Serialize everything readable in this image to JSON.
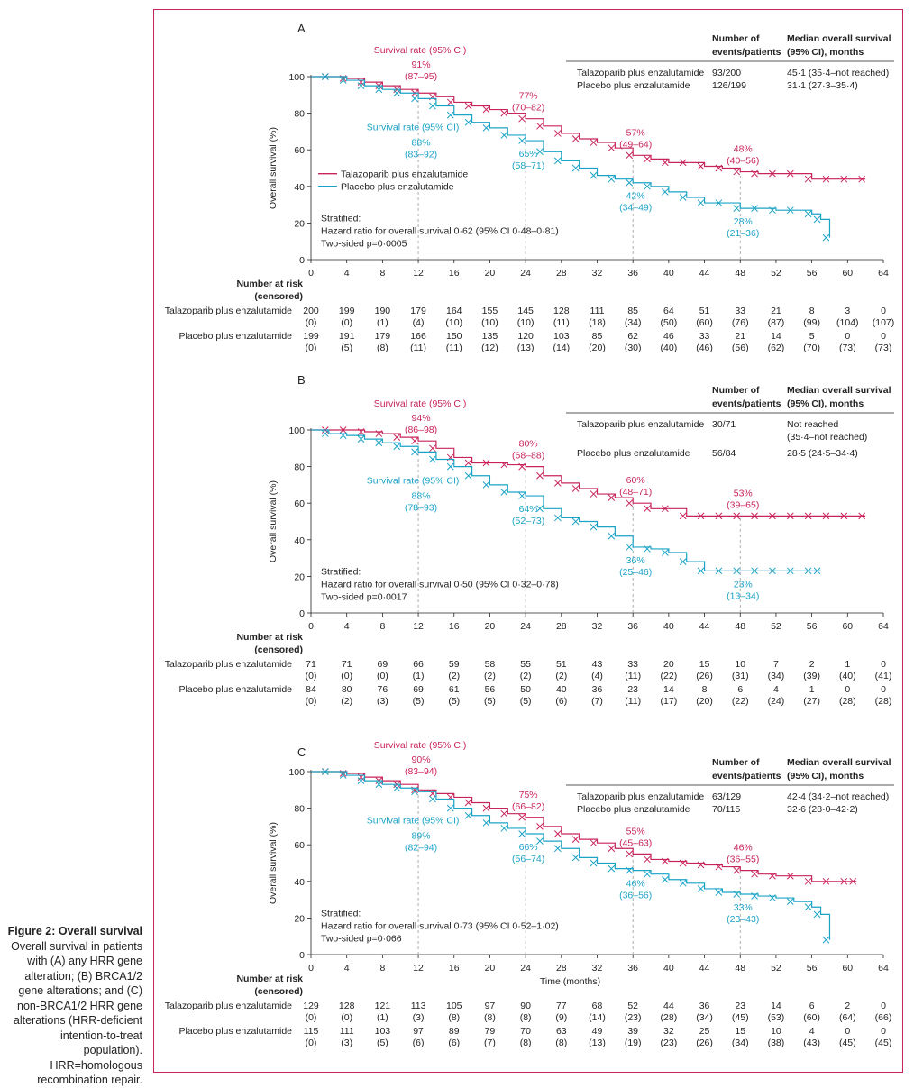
{
  "caption": {
    "title": "Figure 2: Overall survival",
    "text": "Overall survival in patients with (A) any HRR gene alteration; (B) BRCA1/2 gene alterations; and (C) non-BRCA1/2 HRR gene alterations (HRR-deficient intention-to-treat population). HRR=homologous recombination repair."
  },
  "colors": {
    "talazoparib": "#c8245a",
    "placebo": "#1ba3c6",
    "frame": "#c8245a",
    "grid": "#999999"
  },
  "chart_data": [
    {
      "panel": "A",
      "type": "line",
      "ylabel": "Overall survival (%)",
      "xlabel": "",
      "xlim": [
        0,
        64
      ],
      "ylim": [
        0,
        100
      ],
      "xticks": [
        0,
        4,
        8,
        12,
        16,
        20,
        24,
        28,
        32,
        36,
        40,
        44,
        48,
        52,
        56,
        60,
        64
      ],
      "yticks": [
        0,
        20,
        40,
        60,
        80,
        100
      ],
      "legend": {
        "placement": "center-left",
        "entries": [
          "Talazoparib plus enzalutamide",
          "Placebo plus enzalutamide"
        ]
      },
      "table": {
        "headers": [
          "Number of events/patients",
          "Median overall survival (95% CI), months"
        ],
        "rows": [
          {
            "label": "Talazoparib plus enzalutamide",
            "events": "93/200",
            "median": "45·1 (35·4–not reached)"
          },
          {
            "label": "Placebo plus enzalutamide",
            "events": "126/199",
            "median": "31·1 (27·3–35·4)"
          }
        ]
      },
      "stats": [
        "Stratified:",
        "Hazard ratio for overall survival 0·62 (95% CI 0·48–0·81)",
        "Two-sided p=0·0005"
      ],
      "survival_rate_label": "Survival rate (95% CI)",
      "landmarks": [
        {
          "time": 12,
          "tal": "91%",
          "tal_ci": "(87–95)",
          "pla": "88%",
          "pla_ci": "(83–92)"
        },
        {
          "time": 24,
          "tal": "77%",
          "tal_ci": "(70–82)",
          "pla": "65%",
          "pla_ci": "(58–71)"
        },
        {
          "time": 36,
          "tal": "57%",
          "tal_ci": "(49–64)",
          "pla": "42%",
          "pla_ci": "(34–49)"
        },
        {
          "time": 48,
          "tal": "48%",
          "tal_ci": "(40–56)",
          "pla": "28%",
          "pla_ci": "(21–36)"
        }
      ],
      "series": [
        {
          "name": "Talazoparib plus enzalutamide",
          "x": [
            0,
            2,
            4,
            6,
            8,
            10,
            12,
            14,
            16,
            18,
            20,
            22,
            24,
            26,
            28,
            30,
            32,
            34,
            36,
            38,
            40,
            42,
            44,
            46,
            48,
            50,
            52,
            54,
            56,
            58,
            60,
            62
          ],
          "y": [
            100,
            100,
            99,
            97,
            95,
            93,
            91,
            89,
            86,
            84,
            82,
            80,
            77,
            73,
            69,
            66,
            64,
            61,
            57,
            55,
            53,
            53,
            51,
            50,
            48,
            47,
            47,
            47,
            44,
            44,
            44,
            44
          ]
        },
        {
          "name": "Placebo plus enzalutamide",
          "x": [
            0,
            2,
            4,
            6,
            8,
            10,
            12,
            14,
            16,
            18,
            20,
            22,
            24,
            26,
            28,
            30,
            32,
            34,
            36,
            38,
            40,
            42,
            44,
            46,
            48,
            50,
            52,
            54,
            56,
            57,
            58
          ],
          "y": [
            100,
            100,
            98,
            95,
            93,
            91,
            88,
            84,
            79,
            75,
            72,
            68,
            65,
            59,
            54,
            50,
            46,
            44,
            42,
            40,
            37,
            34,
            31,
            31,
            28,
            28,
            27,
            27,
            25,
            22,
            12
          ]
        }
      ],
      "risk": {
        "title": [
          "Number at risk",
          "(censored)"
        ],
        "rows": [
          {
            "label": "Talazoparib plus enzalutamide",
            "n": [
              "200",
              "199",
              "190",
              "179",
              "164",
              "155",
              "145",
              "128",
              "111",
              "85",
              "64",
              "51",
              "33",
              "21",
              "8",
              "3",
              "0"
            ],
            "c": [
              "(0)",
              "(0)",
              "(1)",
              "(4)",
              "(10)",
              "(10)",
              "(10)",
              "(11)",
              "(18)",
              "(34)",
              "(50)",
              "(60)",
              "(76)",
              "(87)",
              "(99)",
              "(104)",
              "(107)"
            ]
          },
          {
            "label": "Placebo plus enzalutamide",
            "n": [
              "199",
              "191",
              "179",
              "166",
              "150",
              "135",
              "120",
              "103",
              "85",
              "62",
              "46",
              "33",
              "21",
              "14",
              "5",
              "0",
              "0"
            ],
            "c": [
              "(0)",
              "(5)",
              "(8)",
              "(11)",
              "(11)",
              "(12)",
              "(13)",
              "(14)",
              "(20)",
              "(30)",
              "(40)",
              "(46)",
              "(56)",
              "(62)",
              "(70)",
              "(73)",
              "(73)"
            ]
          }
        ]
      }
    },
    {
      "panel": "B",
      "type": "line",
      "ylabel": "Overall survival (%)",
      "xlabel": "",
      "xlim": [
        0,
        64
      ],
      "ylim": [
        0,
        100
      ],
      "xticks": [
        0,
        4,
        8,
        12,
        16,
        20,
        24,
        28,
        32,
        36,
        40,
        44,
        48,
        52,
        56,
        60,
        64
      ],
      "yticks": [
        0,
        20,
        40,
        60,
        80,
        100
      ],
      "legend": {
        "placement": "none",
        "entries": []
      },
      "table": {
        "headers": [
          "Number of events/patients",
          "Median overall survival (95% CI), months"
        ],
        "rows": [
          {
            "label": "Talazoparib plus enzalutamide",
            "events": "30/71",
            "median": "Not reached",
            "median2": "(35·4–not reached)"
          },
          {
            "label": "Placebo plus enzalutamide",
            "events": "56/84",
            "median": "28·5 (24·5–34·4)"
          }
        ]
      },
      "stats": [
        "Stratified:",
        "Hazard ratio for overall survival 0·50 (95% CI 0·32–0·78)",
        "Two-sided p=0·0017"
      ],
      "survival_rate_label": "Survival rate (95% CI)",
      "landmarks": [
        {
          "time": 12,
          "tal": "94%",
          "tal_ci": "(86–98)",
          "pla": "88%",
          "pla_ci": "(78–93)"
        },
        {
          "time": 24,
          "tal": "80%",
          "tal_ci": "(68–88)",
          "pla": "64%",
          "pla_ci": "(52–73)"
        },
        {
          "time": 36,
          "tal": "60%",
          "tal_ci": "(48–71)",
          "pla": "36%",
          "pla_ci": "(25–46)"
        },
        {
          "time": 48,
          "tal": "53%",
          "tal_ci": "(39–65)",
          "pla": "23%",
          "pla_ci": "(13–34)"
        }
      ],
      "series": [
        {
          "name": "Talazoparib plus enzalutamide",
          "x": [
            0,
            2,
            4,
            6,
            8,
            10,
            12,
            14,
            16,
            18,
            20,
            22,
            24,
            26,
            28,
            30,
            32,
            34,
            36,
            38,
            40,
            42,
            44,
            46,
            48,
            50,
            52,
            54,
            56,
            58,
            60,
            62
          ],
          "y": [
            100,
            100,
            100,
            99,
            98,
            96,
            94,
            90,
            85,
            82,
            82,
            81,
            80,
            75,
            71,
            68,
            65,
            63,
            60,
            57,
            57,
            53,
            53,
            53,
            53,
            53,
            53,
            53,
            53,
            53,
            53,
            53
          ]
        },
        {
          "name": "Placebo plus enzalutamide",
          "x": [
            0,
            2,
            4,
            6,
            8,
            10,
            12,
            14,
            16,
            18,
            20,
            22,
            24,
            26,
            28,
            30,
            32,
            34,
            36,
            38,
            40,
            42,
            44,
            46,
            48,
            50,
            52,
            54,
            56,
            57
          ],
          "y": [
            100,
            98,
            97,
            95,
            93,
            91,
            88,
            84,
            80,
            75,
            70,
            66,
            64,
            57,
            52,
            50,
            47,
            42,
            36,
            35,
            33,
            28,
            23,
            23,
            23,
            23,
            23,
            23,
            23,
            23
          ]
        }
      ],
      "risk": {
        "title": [
          "Number at risk",
          "(censored)"
        ],
        "rows": [
          {
            "label": "Talazoparib plus enzalutamide",
            "n": [
              "71",
              "71",
              "69",
              "66",
              "59",
              "58",
              "55",
              "51",
              "43",
              "33",
              "20",
              "15",
              "10",
              "7",
              "2",
              "1",
              "0"
            ],
            "c": [
              "(0)",
              "(0)",
              "(0)",
              "(1)",
              "(2)",
              "(2)",
              "(2)",
              "(2)",
              "(4)",
              "(11)",
              "(22)",
              "(26)",
              "(31)",
              "(34)",
              "(39)",
              "(40)",
              "(41)"
            ]
          },
          {
            "label": "Placebo plus enzalutamide",
            "n": [
              "84",
              "80",
              "76",
              "69",
              "61",
              "56",
              "50",
              "40",
              "36",
              "23",
              "14",
              "8",
              "6",
              "4",
              "1",
              "0",
              "0"
            ],
            "c": [
              "(0)",
              "(2)",
              "(3)",
              "(5)",
              "(5)",
              "(5)",
              "(5)",
              "(6)",
              "(7)",
              "(11)",
              "(17)",
              "(20)",
              "(22)",
              "(24)",
              "(27)",
              "(28)",
              "(28)"
            ]
          }
        ]
      }
    },
    {
      "panel": "C",
      "type": "line",
      "ylabel": "Overall survival (%)",
      "xlabel": "Time (months)",
      "xlim": [
        0,
        64
      ],
      "ylim": [
        0,
        100
      ],
      "xticks": [
        0,
        4,
        8,
        12,
        16,
        20,
        24,
        28,
        32,
        36,
        40,
        44,
        48,
        52,
        56,
        60,
        64
      ],
      "yticks": [
        0,
        20,
        40,
        60,
        80,
        100
      ],
      "legend": {
        "placement": "none",
        "entries": []
      },
      "table": {
        "headers": [
          "Number of events/patients",
          "Median overall survival (95% CI), months"
        ],
        "rows": [
          {
            "label": "Talazoparib plus enzalutamide",
            "events": "63/129",
            "median": "42·4 (34·2–not reached)"
          },
          {
            "label": "Placebo plus enzalutamide",
            "events": "70/115",
            "median": "32·6 (28·0–42·2)"
          }
        ]
      },
      "stats": [
        "Stratified:",
        "Hazard ratio for overall survival 0·73 (95% CI 0·52–1·02)",
        "Two-sided p=0·066"
      ],
      "survival_rate_label": "Survival rate (95% CI)",
      "landmarks": [
        {
          "time": 12,
          "tal": "90%",
          "tal_ci": "(83–94)",
          "pla": "89%",
          "pla_ci": "(82–94)"
        },
        {
          "time": 24,
          "tal": "75%",
          "tal_ci": "(66–82)",
          "pla": "66%",
          "pla_ci": "(56–74)"
        },
        {
          "time": 36,
          "tal": "55%",
          "tal_ci": "(45–63)",
          "pla": "46%",
          "pla_ci": "(36–56)"
        },
        {
          "time": 48,
          "tal": "46%",
          "tal_ci": "(36–55)",
          "pla": "33%",
          "pla_ci": "(23–43)"
        }
      ],
      "series": [
        {
          "name": "Talazoparib plus enzalutamide",
          "x": [
            0,
            2,
            4,
            6,
            8,
            10,
            12,
            14,
            16,
            18,
            20,
            22,
            24,
            26,
            28,
            30,
            32,
            34,
            36,
            38,
            40,
            42,
            44,
            46,
            48,
            50,
            52,
            54,
            56,
            58,
            60,
            61
          ],
          "y": [
            100,
            100,
            99,
            97,
            95,
            93,
            90,
            88,
            86,
            83,
            80,
            77,
            75,
            70,
            66,
            63,
            61,
            58,
            55,
            52,
            51,
            50,
            49,
            48,
            46,
            44,
            43,
            43,
            40,
            40,
            40,
            40
          ]
        },
        {
          "name": "Placebo plus enzalutamide",
          "x": [
            0,
            2,
            4,
            6,
            8,
            10,
            12,
            14,
            16,
            18,
            20,
            22,
            24,
            26,
            28,
            30,
            32,
            34,
            36,
            38,
            40,
            42,
            44,
            46,
            48,
            50,
            52,
            54,
            56,
            57,
            58
          ],
          "y": [
            100,
            100,
            98,
            95,
            93,
            91,
            89,
            85,
            80,
            76,
            72,
            69,
            66,
            62,
            58,
            53,
            50,
            47,
            46,
            44,
            41,
            39,
            36,
            34,
            33,
            32,
            31,
            29,
            26,
            22,
            8
          ]
        }
      ],
      "risk": {
        "title": [
          "Number at risk",
          "(censored)"
        ],
        "rows": [
          {
            "label": "Talazoparib plus enzalutamide",
            "n": [
              "129",
              "128",
              "121",
              "113",
              "105",
              "97",
              "90",
              "77",
              "68",
              "52",
              "44",
              "36",
              "23",
              "14",
              "6",
              "2",
              "0"
            ],
            "c": [
              "(0)",
              "(0)",
              "(1)",
              "(3)",
              "(8)",
              "(8)",
              "(8)",
              "(9)",
              "(14)",
              "(23)",
              "(28)",
              "(34)",
              "(45)",
              "(53)",
              "(60)",
              "(64)",
              "(66)"
            ]
          },
          {
            "label": "Placebo plus enzalutamide",
            "n": [
              "115",
              "111",
              "103",
              "97",
              "89",
              "79",
              "70",
              "63",
              "49",
              "39",
              "32",
              "25",
              "15",
              "10",
              "4",
              "0",
              "0"
            ],
            "c": [
              "(0)",
              "(3)",
              "(5)",
              "(6)",
              "(6)",
              "(7)",
              "(8)",
              "(8)",
              "(13)",
              "(19)",
              "(23)",
              "(26)",
              "(34)",
              "(38)",
              "(43)",
              "(45)",
              "(45)"
            ]
          }
        ]
      }
    }
  ]
}
